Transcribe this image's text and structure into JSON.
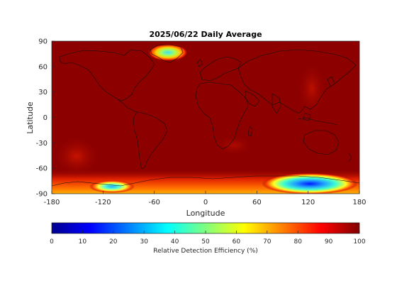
{
  "chart_data": {
    "type": "heatmap",
    "title": "2025/06/22 Daily Average",
    "xlabel": "Longitude",
    "ylabel": "Latitude",
    "xlim": [
      -180,
      180
    ],
    "ylim": [
      -90,
      90
    ],
    "xticks": [
      "-180",
      "-120",
      "-60",
      "0",
      "60",
      "120",
      "180"
    ],
    "yticks": [
      "90",
      "60",
      "30",
      "0",
      "-30",
      "-60",
      "-90"
    ],
    "colorbar": {
      "label": "Relative Detection Efficiency (%)",
      "range": [
        0,
        100
      ],
      "ticks": [
        "0",
        "10",
        "20",
        "30",
        "40",
        "50",
        "60",
        "70",
        "80",
        "90",
        "100"
      ],
      "colormap": "jet"
    },
    "background_value": 97,
    "features": [
      {
        "region": "Greenland",
        "lon": -42,
        "lat": 75,
        "min_value": 35
      },
      {
        "region": "Antarctica (East)",
        "lon": 120,
        "lat": -77,
        "min_value": 10
      },
      {
        "region": "Antarctica (West)",
        "lon": -110,
        "lat": -80,
        "min_value": 40
      }
    ]
  }
}
